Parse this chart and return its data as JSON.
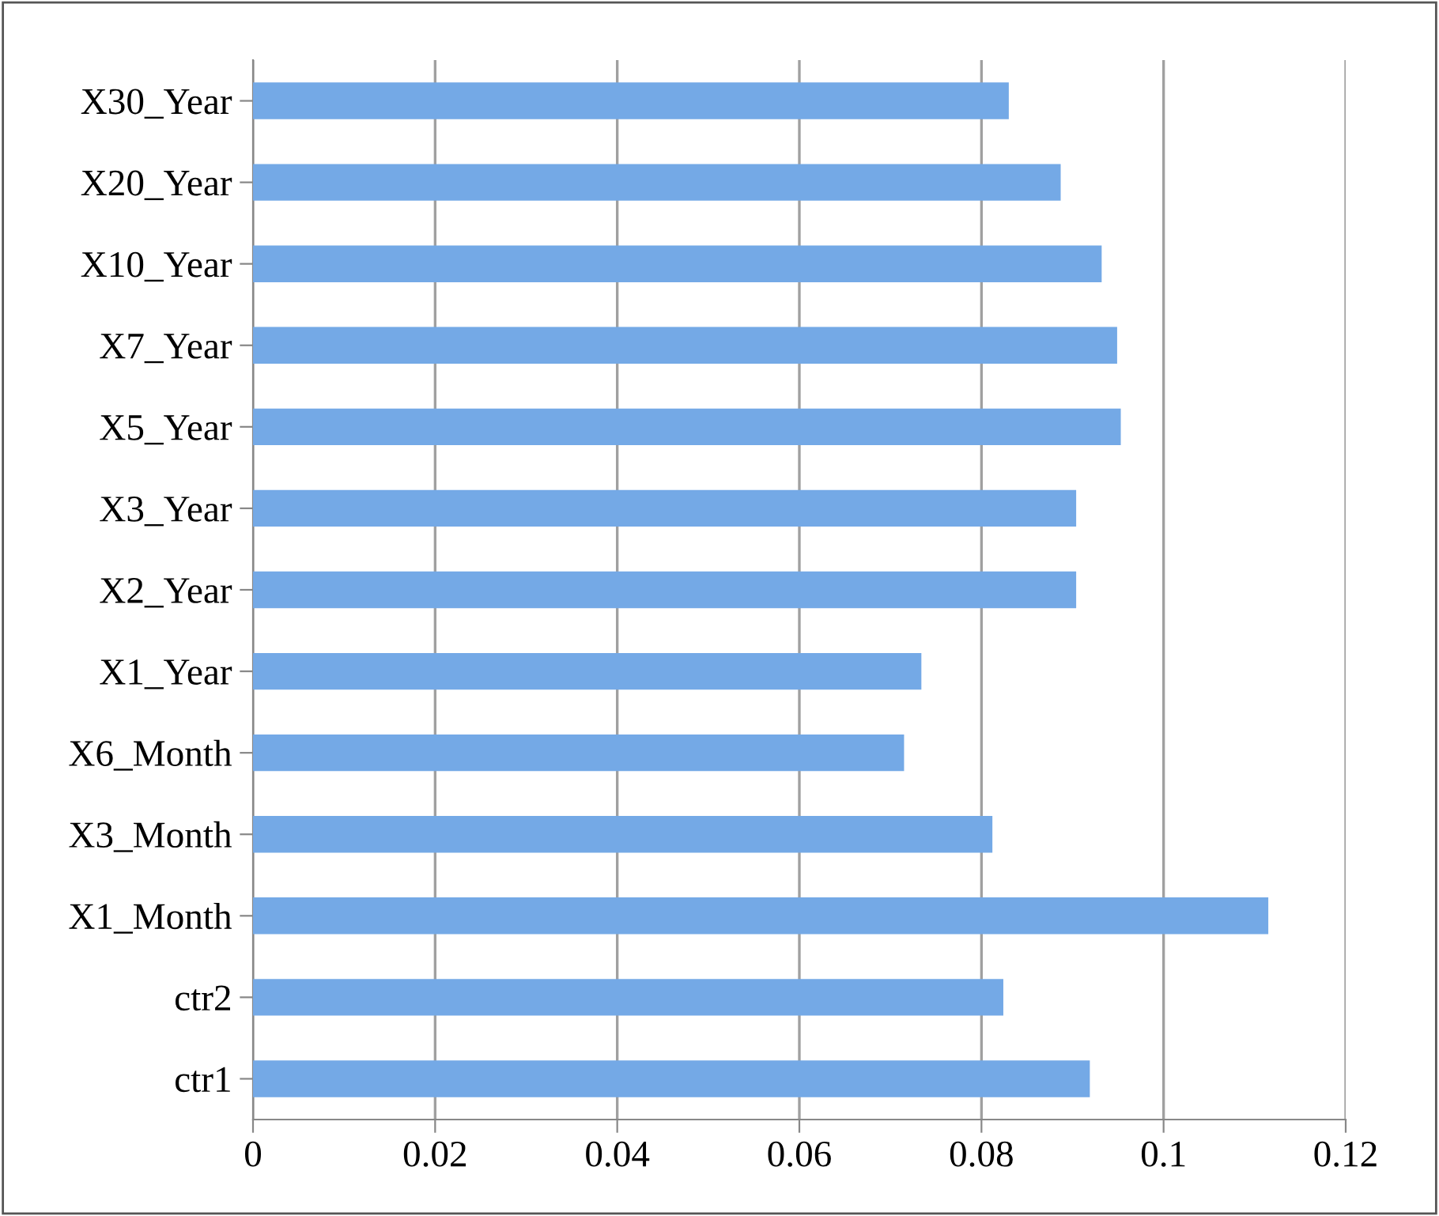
{
  "chart_data": {
    "type": "bar",
    "orientation": "horizontal",
    "categories": [
      "X30_Year",
      "X20_Year",
      "X10_Year",
      "X7_Year",
      "X5_Year",
      "X3_Year",
      "X2_Year",
      "X1_Year",
      "X6_Month",
      "X3_Month",
      "X1_Month",
      "ctr2",
      "ctr1"
    ],
    "values": [
      0.083,
      0.0887,
      0.0932,
      0.0949,
      0.0953,
      0.0904,
      0.0904,
      0.0734,
      0.0715,
      0.0812,
      0.1115,
      0.0824,
      0.0919
    ],
    "color": "#74a9e6",
    "xlim": [
      0,
      0.12
    ],
    "xticks": [
      0,
      0.02,
      0.04,
      0.06,
      0.08,
      0.1,
      0.12
    ],
    "grid": "x"
  }
}
